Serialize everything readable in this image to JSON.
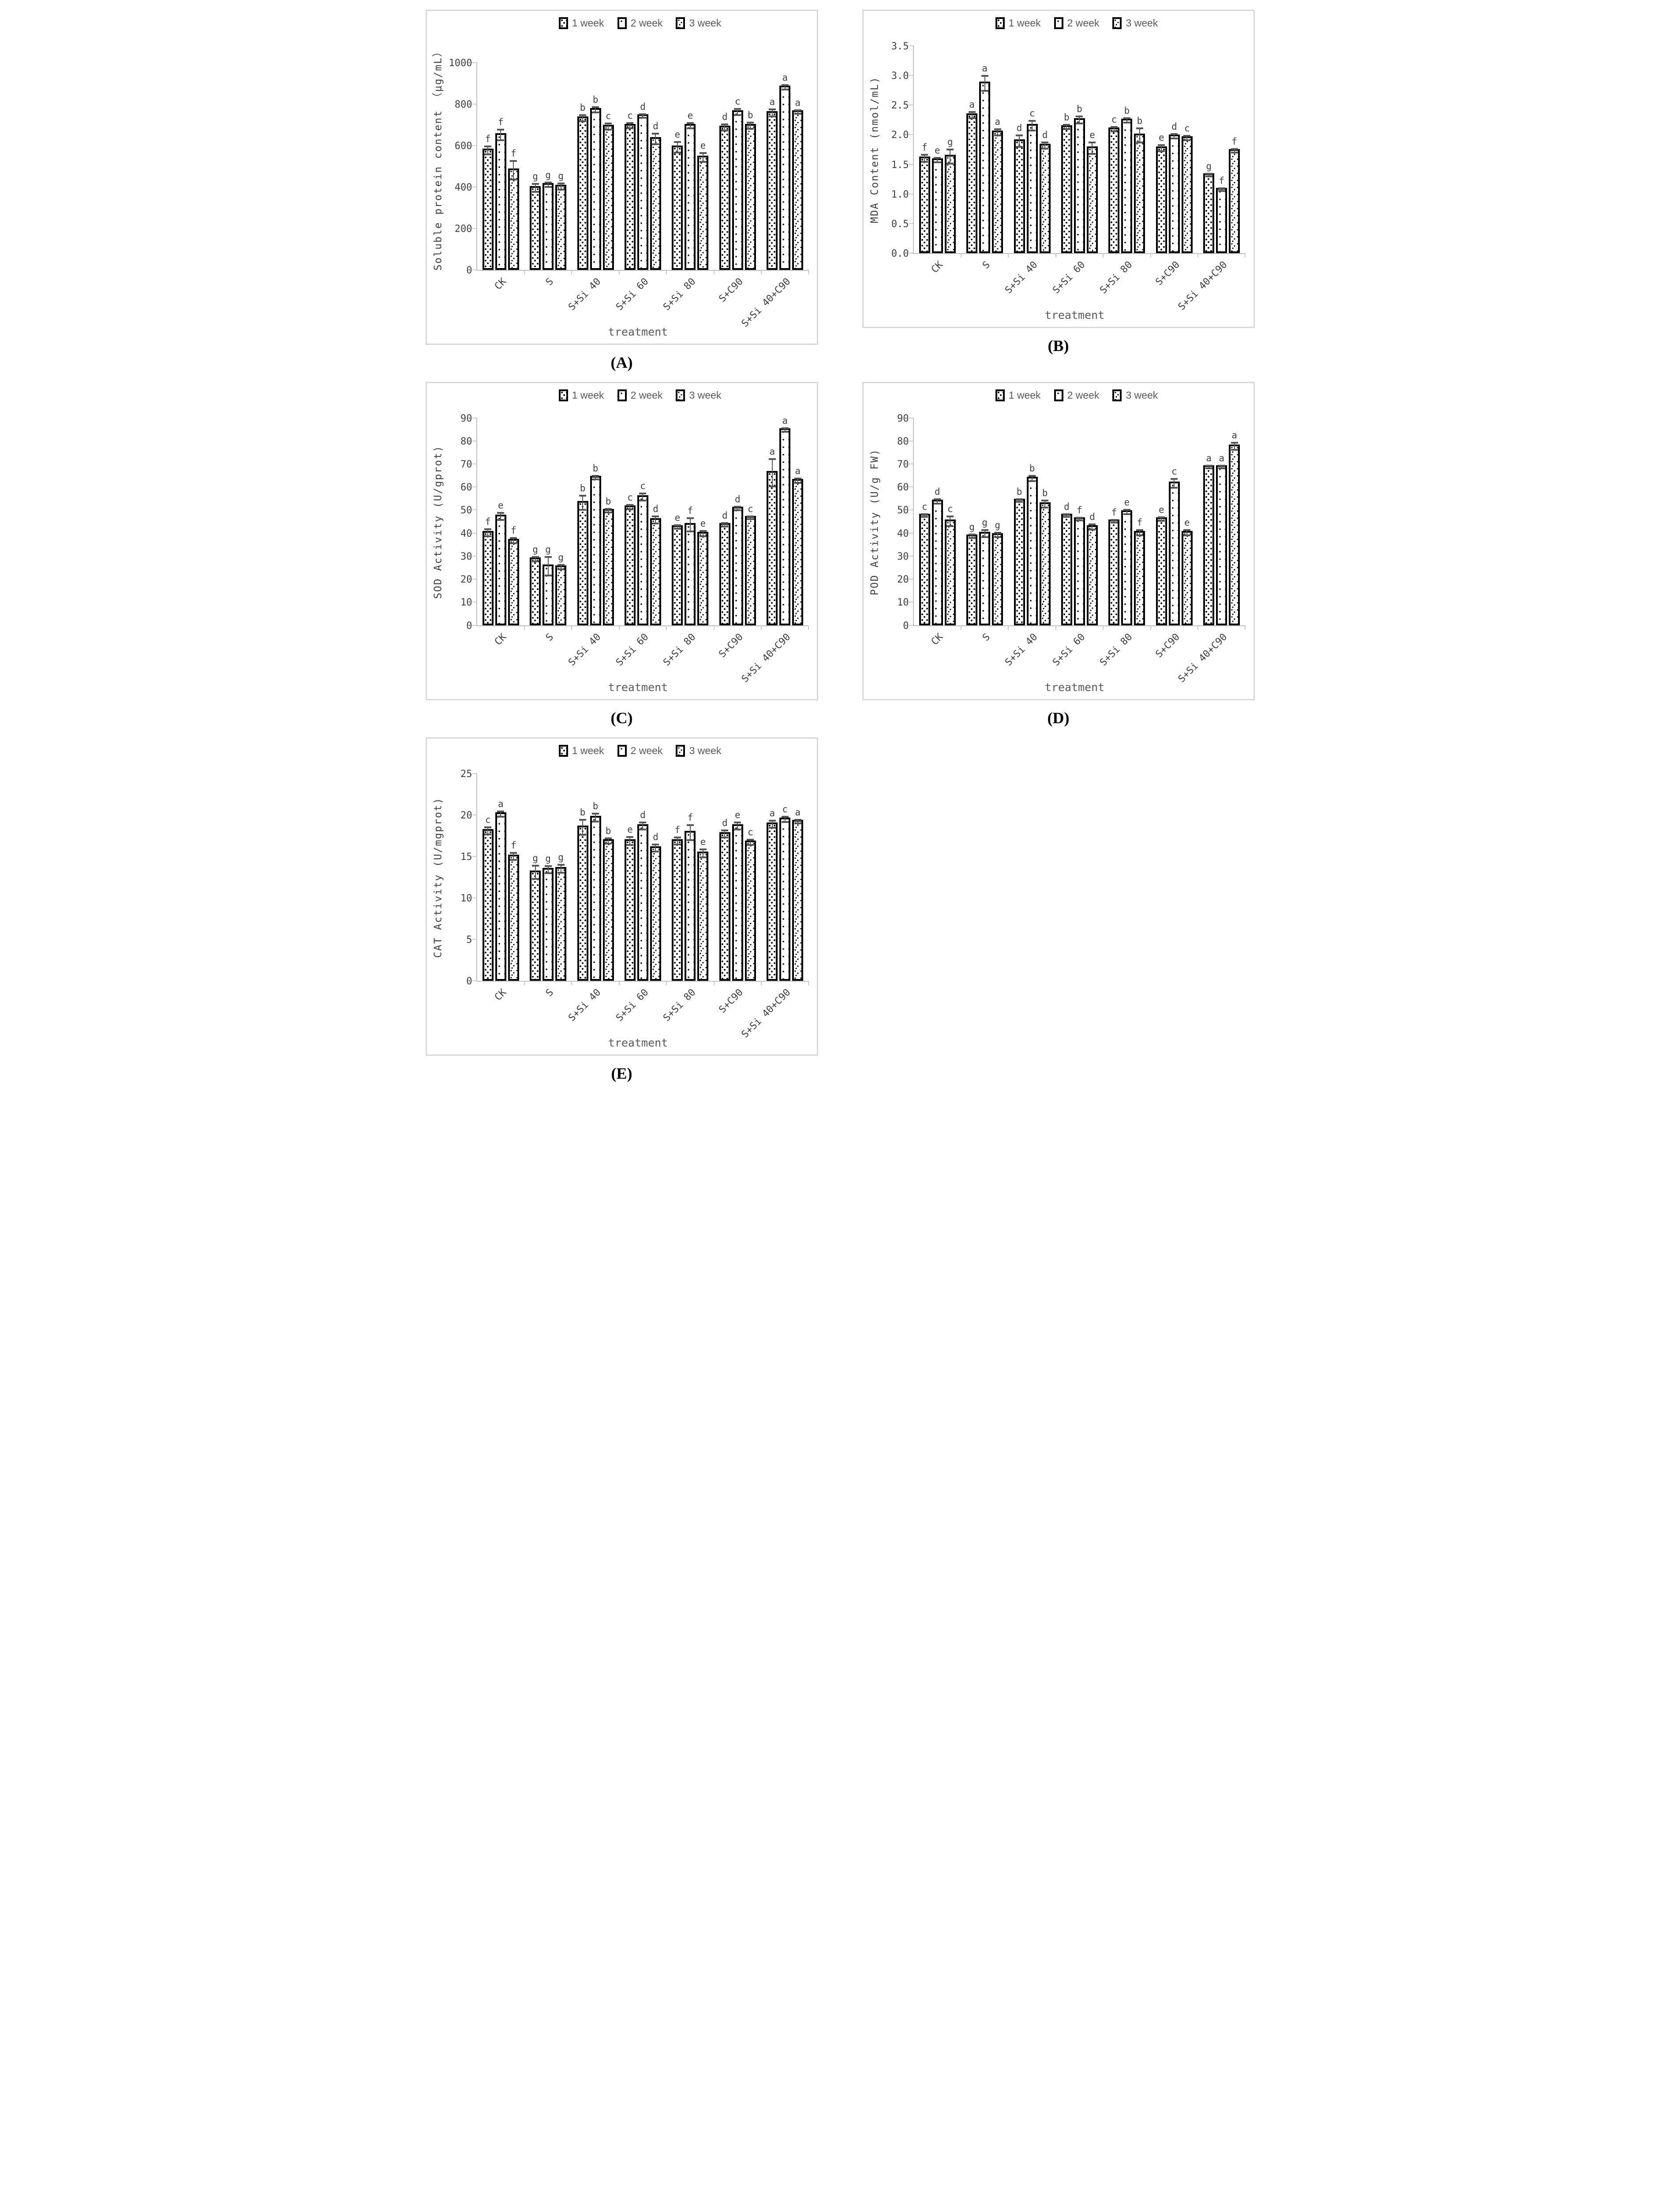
{
  "figure": {
    "legend": [
      "1 week",
      "2 week",
      "3 week"
    ],
    "xlabel": "treatment",
    "categories": [
      "CK",
      "S",
      "S+Si 40",
      "S+Si 60",
      "S+Si 80",
      "S+C90",
      "S+Si 40+C90"
    ],
    "colors": {
      "bar_border": "#000000",
      "error_bar": "#555555",
      "axis": "#bfbfbf",
      "tick_text": "#3f3f3f",
      "panel_border": "#d9d9d9"
    }
  },
  "chart_data": [
    {
      "panel": "A",
      "panel_label": "(A)",
      "type": "bar",
      "ylabel": "Soluble protein content （μg/mL）",
      "xlabel": "treatment",
      "ylim": [
        0,
        1000
      ],
      "yticks": [
        "0",
        "200",
        "400",
        "600",
        "800",
        "1000"
      ],
      "categories": [
        "CK",
        "S",
        "S+Si 40",
        "S+Si 60",
        "S+Si 80",
        "S+C90",
        "S+Si 40+C90"
      ],
      "series": [
        {
          "name": "1 week",
          "values": [
            585,
            405,
            740,
            705,
            600,
            695,
            765
          ],
          "errors": [
            20,
            20,
            15,
            12,
            25,
            15,
            18
          ],
          "letters": [
            "f",
            "g",
            "b",
            "c",
            "e",
            "d",
            "a"
          ]
        },
        {
          "name": "2 week",
          "values": [
            660,
            420,
            780,
            750,
            705,
            770,
            890
          ],
          "errors": [
            25,
            10,
            12,
            8,
            12,
            15,
            10
          ],
          "letters": [
            "f",
            "g",
            "b",
            "d",
            "e",
            "c",
            "a"
          ]
        },
        {
          "name": "3 week",
          "values": [
            490,
            410,
            700,
            640,
            550,
            705,
            770
          ],
          "errors": [
            45,
            15,
            15,
            25,
            22,
            15,
            8
          ],
          "letters": [
            "f",
            "g",
            "c",
            "d",
            "e",
            "b",
            "a"
          ]
        }
      ]
    },
    {
      "panel": "B",
      "panel_label": "(B)",
      "type": "bar",
      "ylabel": "MDA Content (nmol/mL)",
      "xlabel": "treatment",
      "ylim": [
        0,
        3.5
      ],
      "yticks": [
        "0.0",
        "0.5",
        "1.0",
        "1.5",
        "2.0",
        "2.5",
        "3.0",
        "3.5"
      ],
      "categories": [
        "CK",
        "S",
        "S+Si 40",
        "S+Si 60",
        "S+Si 80",
        "S+C90",
        "S+Si 40+C90"
      ],
      "series": [
        {
          "name": "1 week",
          "values": [
            1.63,
            2.36,
            1.92,
            2.16,
            2.12,
            1.8,
            1.35
          ],
          "errors": [
            0.06,
            0.05,
            0.1,
            0.04,
            0.04,
            0.05,
            0.02
          ],
          "letters": [
            "f",
            "a",
            "d",
            "b",
            "c",
            "e",
            "g"
          ]
        },
        {
          "name": "2 week",
          "values": [
            1.6,
            2.9,
            2.18,
            2.28,
            2.27,
            2.0,
            1.1
          ],
          "errors": [
            0.04,
            0.13,
            0.08,
            0.06,
            0.04,
            0.04,
            0.02
          ],
          "letters": [
            "e",
            "a",
            "c",
            "b",
            "b",
            "d",
            "f"
          ]
        },
        {
          "name": "3 week",
          "values": [
            1.66,
            2.07,
            1.85,
            1.8,
            2.02,
            1.97,
            1.76
          ],
          "errors": [
            0.12,
            0.05,
            0.05,
            0.1,
            0.12,
            0.04,
            0.03
          ],
          "letters": [
            "g",
            "a",
            "d",
            "e",
            "b",
            "c",
            "f"
          ]
        }
      ]
    },
    {
      "panel": "C",
      "panel_label": "(C)",
      "type": "bar",
      "ylabel": "SOD Activity (U/gprot)",
      "xlabel": "treatment",
      "ylim": [
        0,
        90
      ],
      "yticks": [
        "0",
        "10",
        "20",
        "30",
        "40",
        "50",
        "60",
        "70",
        "80",
        "90"
      ],
      "categories": [
        "CK",
        "S",
        "S+Si 40",
        "S+Si 60",
        "S+Si 80",
        "S+C90",
        "S+Si 40+C90"
      ],
      "series": [
        {
          "name": "1 week",
          "values": [
            41,
            29.5,
            54,
            52,
            43.5,
            44.5,
            67
          ],
          "errors": [
            1.5,
            1,
            3,
            1,
            0.8,
            0.8,
            6
          ],
          "letters": [
            "f",
            "g",
            "b",
            "c",
            "e",
            "d",
            "a"
          ]
        },
        {
          "name": "2 week",
          "values": [
            48,
            26.5,
            65,
            56.5,
            44.5,
            51.5,
            85.5
          ],
          "errors": [
            1.5,
            4,
            0.8,
            1.5,
            2.8,
            0.8,
            0.8
          ],
          "letters": [
            "e",
            "g",
            "b",
            "c",
            "f",
            "d",
            "a"
          ]
        },
        {
          "name": "3 week",
          "values": [
            37.5,
            26,
            50.5,
            46.5,
            40.5,
            47.5,
            63.5
          ],
          "errors": [
            1.2,
            1,
            0.8,
            1.5,
            1.2,
            0.5,
            1
          ],
          "letters": [
            "f",
            "g",
            "b",
            "d",
            "e",
            "c",
            "a"
          ]
        }
      ]
    },
    {
      "panel": "D",
      "panel_label": "(D)",
      "type": "bar",
      "ylabel": "POD Activity (U/g FW)",
      "xlabel": "treatment",
      "ylim": [
        0,
        90
      ],
      "yticks": [
        "0",
        "10",
        "20",
        "30",
        "40",
        "50",
        "60",
        "70",
        "80",
        "90"
      ],
      "categories": [
        "CK",
        "S",
        "S+Si 40",
        "S+Si 60",
        "S+Si 80",
        "S+C90",
        "S+Si 40+C90"
      ],
      "series": [
        {
          "name": "1 week",
          "values": [
            48.5,
            39.5,
            55,
            48.5,
            46,
            47,
            69.5
          ],
          "errors": [
            0.5,
            0.8,
            0.5,
            0.5,
            0.6,
            0.8,
            0.5
          ],
          "letters": [
            "c",
            "g",
            "b",
            "d",
            "f",
            "e",
            "a"
          ]
        },
        {
          "name": "2 week",
          "values": [
            54.5,
            40.5,
            64.5,
            47,
            50,
            62.5,
            69.5
          ],
          "errors": [
            1,
            1.5,
            1.2,
            0.5,
            1,
            2,
            0.5
          ],
          "letters": [
            "d",
            "g",
            "b",
            "f",
            "e",
            "c",
            "a"
          ]
        },
        {
          "name": "3 week",
          "values": [
            46,
            40,
            53.5,
            43.5,
            41,
            41,
            78.5
          ],
          "errors": [
            2.2,
            1,
            1.5,
            1.2,
            1.2,
            1.2,
            1.5
          ],
          "letters": [
            "c",
            "g",
            "b",
            "d",
            "f",
            "e",
            "a"
          ]
        }
      ]
    },
    {
      "panel": "E",
      "panel_label": "(E)",
      "type": "bar",
      "ylabel": "CAT Activity (U/mgprot)",
      "xlabel": "treatment",
      "ylim": [
        0,
        25
      ],
      "yticks": [
        "0",
        "5",
        "10",
        "15",
        "20",
        "25"
      ],
      "categories": [
        "CK",
        "S",
        "S+Si 40",
        "S+Si 60",
        "S+Si 80",
        "S+C90",
        "S+Si 40+C90"
      ],
      "series": [
        {
          "name": "1 week",
          "values": [
            18.3,
            13.3,
            18.7,
            17.1,
            17.1,
            17.9,
            19.1
          ],
          "errors": [
            0.4,
            0.8,
            0.9,
            0.5,
            0.4,
            0.4,
            0.4
          ],
          "letters": [
            "c",
            "g",
            "b",
            "e",
            "f",
            "d",
            "a"
          ]
        },
        {
          "name": "2 week",
          "values": [
            20.3,
            13.6,
            19.9,
            18.9,
            18.1,
            18.9,
            19.7
          ],
          "errors": [
            0.3,
            0.4,
            0.5,
            0.4,
            0.9,
            0.4,
            0.3
          ],
          "letters": [
            "a",
            "g",
            "b",
            "d",
            "f",
            "e",
            "c"
          ]
        },
        {
          "name": "3 week",
          "values": [
            15.2,
            13.7,
            17.1,
            16.2,
            15.6,
            16.9,
            19.4
          ],
          "errors": [
            0.4,
            0.5,
            0.3,
            0.4,
            0.5,
            0.3,
            0.2
          ],
          "letters": [
            "f",
            "g",
            "b",
            "d",
            "e",
            "c",
            "a"
          ]
        }
      ]
    }
  ]
}
